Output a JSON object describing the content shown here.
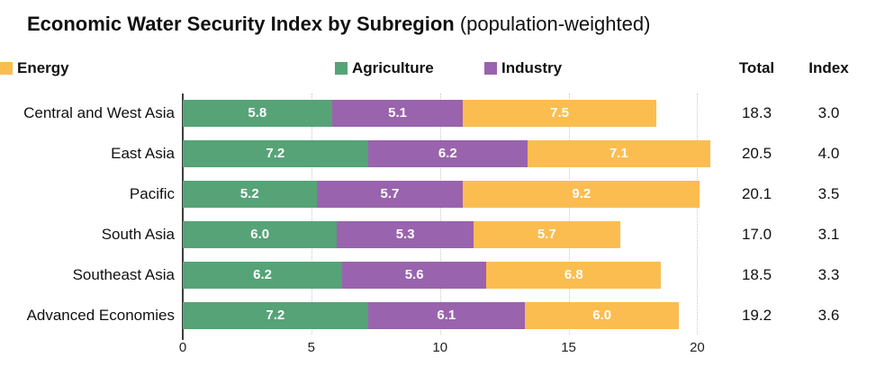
{
  "title": {
    "main": "Economic Water Security Index by Subregion",
    "suffix": " (population-weighted)"
  },
  "columns": {
    "total": "Total",
    "index": "Index"
  },
  "legend": [
    {
      "label": "Agriculture",
      "color": "#56a377"
    },
    {
      "label": "Industry",
      "color": "#9a63ad"
    },
    {
      "label": "Energy",
      "color": "#fbbd50"
    }
  ],
  "chart_data": {
    "type": "bar",
    "orientation": "horizontal",
    "stacked": true,
    "title": "Economic Water Security Index by Subregion (population-weighted)",
    "categories": [
      "Central and West Asia",
      "East Asia",
      "Pacific",
      "South Asia",
      "Southeast Asia",
      "Advanced Economies"
    ],
    "series": [
      {
        "name": "Agriculture",
        "color": "#56a377",
        "values": [
          5.8,
          7.2,
          5.2,
          6.0,
          6.2,
          7.2
        ]
      },
      {
        "name": "Industry",
        "color": "#9a63ad",
        "values": [
          5.1,
          6.2,
          5.7,
          5.3,
          5.6,
          6.1
        ]
      },
      {
        "name": "Energy",
        "color": "#fbbd50",
        "values": [
          7.5,
          7.1,
          9.2,
          5.7,
          6.8,
          6.0
        ]
      }
    ],
    "totals": [
      18.3,
      20.5,
      20.1,
      17.0,
      18.5,
      19.2
    ],
    "index": [
      3.0,
      4.0,
      3.5,
      3.1,
      3.3,
      3.6
    ],
    "x_ticks": [
      0,
      5,
      10,
      15,
      20
    ],
    "xlim": [
      0,
      21
    ],
    "grid": "vertical-dotted",
    "legend_position": "top",
    "value_labels": "inside-white-bold"
  }
}
